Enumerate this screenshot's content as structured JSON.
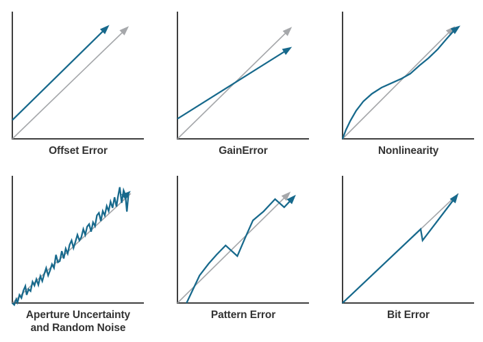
{
  "figure": {
    "description_colors": {
      "signal": "#17698c",
      "ideal": "#a6a8ab",
      "axis": "#3d3d3d",
      "text": "#333333",
      "background": "#ffffff"
    }
  },
  "colors": {
    "signal": "#17698c",
    "ideal": "#a6a8ab",
    "axis": "#3d3d3d",
    "text": "#333333"
  },
  "chart_data": [
    {
      "type": "line",
      "title": "Offset Error",
      "title_lines": [
        "Offset Error"
      ],
      "axes": {
        "x_label": "",
        "y_label": "",
        "ticks": false,
        "x_range": [
          0,
          1
        ],
        "y_range": [
          0,
          1
        ]
      },
      "series": [
        {
          "name": "ideal-transfer-line",
          "color_key": "ideal",
          "arrow": true,
          "points": [
            [
              0,
              0
            ],
            [
              0.895,
              0.9
            ]
          ]
        },
        {
          "name": "offset-signal-line",
          "color_key": "signal",
          "arrow": true,
          "points": [
            [
              0,
              0.15
            ],
            [
              0.745,
              0.91
            ]
          ]
        }
      ]
    },
    {
      "type": "line",
      "title": "GainError",
      "title_lines": [
        "GainError"
      ],
      "axes": {
        "x_label": "",
        "y_label": "",
        "ticks": false,
        "x_range": [
          0,
          1
        ],
        "y_range": [
          0,
          1
        ]
      },
      "series": [
        {
          "name": "ideal-transfer-line",
          "color_key": "ideal",
          "arrow": true,
          "points": [
            [
              0,
              0
            ],
            [
              0.88,
              0.895
            ]
          ]
        },
        {
          "name": "gain-signal-line",
          "color_key": "signal",
          "arrow": true,
          "points": [
            [
              0,
              0.16
            ],
            [
              0.88,
              0.735
            ]
          ]
        }
      ]
    },
    {
      "type": "line",
      "title": "Nonlinearity",
      "title_lines": [
        "Nonlinearity"
      ],
      "axes": {
        "x_label": "",
        "y_label": "",
        "ticks": false,
        "x_range": [
          0,
          1
        ],
        "y_range": [
          0,
          1
        ]
      },
      "series": [
        {
          "name": "ideal-transfer-line",
          "color_key": "ideal",
          "arrow": true,
          "points": [
            [
              0,
              0
            ],
            [
              0.865,
              0.9
            ]
          ]
        },
        {
          "name": "nonlinear-signal-curve",
          "color_key": "signal",
          "arrow": true,
          "points": [
            [
              0,
              0
            ],
            [
              0.025,
              0.07
            ],
            [
              0.06,
              0.145
            ],
            [
              0.105,
              0.225
            ],
            [
              0.16,
              0.3
            ],
            [
              0.225,
              0.36
            ],
            [
              0.3,
              0.41
            ],
            [
              0.375,
              0.445
            ],
            [
              0.45,
              0.48
            ],
            [
              0.52,
              0.52
            ],
            [
              0.59,
              0.585
            ],
            [
              0.66,
              0.645
            ],
            [
              0.73,
              0.715
            ],
            [
              0.8,
              0.8
            ],
            [
              0.86,
              0.87
            ],
            [
              0.905,
              0.905
            ]
          ]
        }
      ]
    },
    {
      "type": "line",
      "title": "Aperture Uncertainty and Random Noise",
      "title_lines": [
        "Aperture Uncertainty",
        "and Random Noise"
      ],
      "axes": {
        "x_label": "",
        "y_label": "",
        "ticks": false,
        "x_range": [
          0,
          1
        ],
        "y_range": [
          0,
          1
        ]
      },
      "series": [
        {
          "name": "ideal-transfer-line",
          "color_key": "ideal",
          "arrow": false,
          "points": [
            [
              0,
              0
            ],
            [
              0.91,
              0.875
            ]
          ]
        },
        {
          "name": "noisy-signal-line",
          "color_key": "signal",
          "arrow": true,
          "points": [
            [
              0,
              0
            ],
            [
              0.015,
              -0.015
            ],
            [
              0.03,
              0.03
            ],
            [
              0.04,
              0.005
            ],
            [
              0.055,
              0.065
            ],
            [
              0.07,
              0.04
            ],
            [
              0.085,
              0.1
            ],
            [
              0.1,
              0.135
            ],
            [
              0.11,
              0.065
            ],
            [
              0.125,
              0.11
            ],
            [
              0.14,
              0.095
            ],
            [
              0.155,
              0.17
            ],
            [
              0.17,
              0.14
            ],
            [
              0.185,
              0.19
            ],
            [
              0.2,
              0.145
            ],
            [
              0.215,
              0.215
            ],
            [
              0.23,
              0.175
            ],
            [
              0.245,
              0.23
            ],
            [
              0.26,
              0.28
            ],
            [
              0.275,
              0.22
            ],
            [
              0.29,
              0.26
            ],
            [
              0.305,
              0.31
            ],
            [
              0.32,
              0.28
            ],
            [
              0.335,
              0.385
            ],
            [
              0.35,
              0.325
            ],
            [
              0.365,
              0.335
            ],
            [
              0.38,
              0.415
            ],
            [
              0.395,
              0.355
            ],
            [
              0.41,
              0.435
            ],
            [
              0.425,
              0.395
            ],
            [
              0.44,
              0.465
            ],
            [
              0.455,
              0.5
            ],
            [
              0.47,
              0.44
            ],
            [
              0.485,
              0.49
            ],
            [
              0.5,
              0.545
            ],
            [
              0.515,
              0.5
            ],
            [
              0.53,
              0.525
            ],
            [
              0.545,
              0.59
            ],
            [
              0.56,
              0.545
            ],
            [
              0.575,
              0.61
            ],
            [
              0.59,
              0.63
            ],
            [
              0.605,
              0.57
            ],
            [
              0.62,
              0.645
            ],
            [
              0.635,
              0.615
            ],
            [
              0.65,
              0.7
            ],
            [
              0.665,
              0.72
            ],
            [
              0.68,
              0.655
            ],
            [
              0.695,
              0.735
            ],
            [
              0.71,
              0.7
            ],
            [
              0.725,
              0.775
            ],
            [
              0.74,
              0.735
            ],
            [
              0.755,
              0.81
            ],
            [
              0.77,
              0.76
            ],
            [
              0.785,
              0.845
            ],
            [
              0.8,
              0.77
            ],
            [
              0.81,
              0.84
            ],
            [
              0.825,
              0.925
            ],
            [
              0.84,
              0.8
            ],
            [
              0.855,
              0.9
            ],
            [
              0.868,
              0.865
            ],
            [
              0.88,
              0.73
            ],
            [
              0.893,
              0.88
            ],
            [
              0.91,
              0.895
            ]
          ]
        }
      ]
    },
    {
      "type": "line",
      "title": "Pattern Error",
      "title_lines": [
        "Pattern Error"
      ],
      "axes": {
        "x_label": "",
        "y_label": "",
        "ticks": false,
        "x_range": [
          0,
          1
        ],
        "y_range": [
          0,
          1
        ]
      },
      "series": [
        {
          "name": "ideal-transfer-line",
          "color_key": "ideal",
          "arrow": true,
          "points": [
            [
              0,
              0
            ],
            [
              0.87,
              0.89
            ]
          ]
        },
        {
          "name": "pattern-signal-line",
          "color_key": "signal",
          "arrow": true,
          "points": [
            [
              0.07,
              0
            ],
            [
              0.17,
              0.22
            ],
            [
              0.24,
              0.315
            ],
            [
              0.3,
              0.385
            ],
            [
              0.37,
              0.46
            ],
            [
              0.46,
              0.375
            ],
            [
              0.52,
              0.52
            ],
            [
              0.58,
              0.66
            ],
            [
              0.66,
              0.73
            ],
            [
              0.75,
              0.83
            ],
            [
              0.82,
              0.765
            ],
            [
              0.91,
              0.865
            ]
          ]
        }
      ]
    },
    {
      "type": "line",
      "title": "Bit Error",
      "title_lines": [
        "Bit Error"
      ],
      "axes": {
        "x_label": "",
        "y_label": "",
        "ticks": false,
        "x_range": [
          0,
          1
        ],
        "y_range": [
          0,
          1
        ]
      },
      "series": [
        {
          "name": "ideal-transfer-line",
          "color_key": "ideal",
          "arrow": false,
          "points": [
            [
              0,
              0
            ],
            [
              0.89,
              0.875
            ]
          ]
        },
        {
          "name": "bit-error-signal-line",
          "color_key": "signal",
          "arrow": true,
          "points": [
            [
              0,
              0
            ],
            [
              0.6,
              0.59
            ],
            [
              0.615,
              0.5
            ],
            [
              0.89,
              0.875
            ]
          ]
        }
      ]
    }
  ]
}
